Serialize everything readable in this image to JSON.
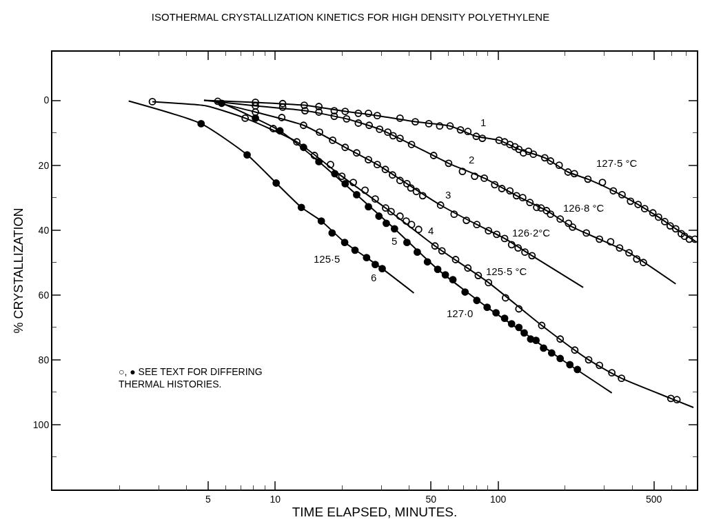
{
  "chart_data": {
    "type": "line",
    "title": "ISOTHERMAL CRYSTALLIZATION KINETICS FOR HIGH DENSITY POLYETHYLENE",
    "xlabel": "TIME ELAPSED, MINUTES.",
    "ylabel": "% CRYSTALLIZATION",
    "log": "x",
    "xlim": [
      1,
      780
    ],
    "ylim": [
      120,
      -15
    ],
    "xticks": [
      {
        "value": 2,
        "label": null
      },
      {
        "value": 3,
        "label": null
      },
      {
        "value": 4,
        "label": null
      },
      5,
      {
        "value": 6,
        "label": null
      },
      {
        "value": 7,
        "label": null
      },
      {
        "value": 8,
        "label": null
      },
      {
        "value": 9,
        "label": null
      },
      10,
      {
        "value": 20,
        "label": null
      },
      {
        "value": 30,
        "label": null
      },
      {
        "value": 40,
        "label": null
      },
      50,
      {
        "value": 60,
        "label": null
      },
      {
        "value": 70,
        "label": null
      },
      {
        "value": 80,
        "label": null
      },
      {
        "value": 90,
        "label": null
      },
      100,
      {
        "value": 200,
        "label": null
      },
      {
        "value": 300,
        "label": null
      },
      {
        "value": 400,
        "label": null
      },
      500,
      {
        "value": 600,
        "label": null
      },
      {
        "value": 700,
        "label": null
      }
    ],
    "yticks": [
      0,
      {
        "value": 10,
        "label": null
      },
      20,
      {
        "value": 30,
        "label": null
      },
      40,
      {
        "value": 50,
        "label": null
      },
      60,
      {
        "value": 70,
        "label": null
      },
      80,
      {
        "value": 90,
        "label": null
      },
      100,
      {
        "value": 110,
        "label": null
      }
    ],
    "series": [
      {
        "marker": "none",
        "color": "#000000",
        "x": [
          4.79,
          8.15,
          13.5,
          20.6,
          28.7,
          42.5,
          60.9,
          79.8,
          101,
          124,
          162,
          206,
          253,
          329,
          425,
          525,
          627,
          770
        ],
        "values": [
          0,
          0.6,
          1.5,
          3.4,
          4.7,
          6.6,
          7.9,
          11.1,
          12.3,
          15.1,
          17.7,
          22.1,
          24.3,
          27.9,
          32.1,
          36.0,
          39.6,
          43.5
        ]
      },
      {
        "type": "scatter",
        "marker": "circle-open",
        "color": "#000000",
        "x": [
          5.52,
          8.15,
          10.8,
          13.5,
          15.7,
          18.4,
          20.6,
          23.6,
          26.2,
          28.7,
          36.3,
          42.5,
          48.9,
          54.7,
          60.9,
          67.8,
          73.2,
          79.8,
          85.0,
          101,
          107,
          113,
          119,
          124,
          130,
          137,
          144,
          162,
          172,
          188,
          206,
          220,
          253,
          294,
          329,
          360,
          393,
          425,
          455,
          495,
          525,
          560,
          592,
          627,
          664,
          687,
          721,
          764
        ],
        "values": [
          0.3,
          0.6,
          1.0,
          1.5,
          1.9,
          3.2,
          3.4,
          4.0,
          4.0,
          4.7,
          5.5,
          6.6,
          7.2,
          7.9,
          7.9,
          9.1,
          9.6,
          11.1,
          11.7,
          12.3,
          12.8,
          13.6,
          14.3,
          15.1,
          16.2,
          15.7,
          16.6,
          17.7,
          18.7,
          20.0,
          22.1,
          22.6,
          24.3,
          25.3,
          27.9,
          29.1,
          31.1,
          32.1,
          33.4,
          34.7,
          36.0,
          37.4,
          38.7,
          39.6,
          41.1,
          41.9,
          42.8,
          42.8
        ]
      },
      {
        "marker": "none",
        "color": "#000000",
        "x": [
          4.79,
          8.15,
          13.6,
          20.9,
          29.4,
          40.9,
          60.0,
          86.7,
          121,
          165,
          216,
          285,
          387,
          627
        ],
        "values": [
          0,
          1.7,
          3.2,
          5.7,
          8.9,
          13.6,
          19.4,
          24.0,
          29.4,
          34.0,
          39.1,
          42.8,
          47.0,
          56.6
        ]
      },
      {
        "type": "scatter",
        "marker": "circle-open",
        "color": "#000000",
        "x": [
          8.15,
          10.8,
          13.6,
          15.7,
          18.4,
          20.9,
          23.6,
          26.4,
          29.4,
          32.0,
          33.8,
          36.3,
          40.9,
          51.4,
          60.0,
          69.2,
          78.5,
          86.7,
          96.6,
          104,
          113,
          121,
          129,
          139,
          149,
          156,
          165,
          172,
          190,
          207,
          216,
          249,
          285,
          320,
          351,
          387,
          419,
          449
        ],
        "values": [
          1.7,
          2.1,
          3.2,
          3.6,
          4.9,
          5.7,
          7.0,
          7.7,
          8.9,
          9.8,
          10.9,
          11.7,
          13.6,
          17.0,
          19.4,
          21.9,
          23.4,
          24.0,
          26.0,
          27.2,
          27.9,
          29.4,
          30.0,
          31.5,
          33.0,
          33.2,
          34.0,
          35.1,
          36.6,
          37.9,
          39.1,
          40.9,
          42.8,
          43.6,
          45.5,
          47.0,
          48.9,
          50.0
        ]
      },
      {
        "marker": "none",
        "color": "#000000",
        "x": [
          5.4,
          8.15,
          13.4,
          20.6,
          28.7,
          39.0,
          55.2,
          80.3,
          107,
          142,
          241
        ],
        "values": [
          0.6,
          3.6,
          7.7,
          14.5,
          19.8,
          25.7,
          32.3,
          38.3,
          42.6,
          47.9,
          57.7
        ]
      },
      {
        "type": "scatter",
        "marker": "circle-open",
        "color": "#000000",
        "x": [
          8.15,
          10.7,
          13.4,
          15.8,
          18.1,
          20.6,
          23.2,
          26.2,
          28.7,
          31.2,
          33.6,
          36.3,
          39.0,
          40.6,
          43.0,
          45.9,
          55.2,
          63.5,
          72.1,
          80.3,
          90.6,
          98.6,
          107,
          115,
          123,
          132,
          142
        ],
        "values": [
          3.6,
          5.3,
          7.7,
          9.8,
          12.3,
          14.5,
          16.2,
          18.3,
          19.8,
          21.3,
          23.0,
          24.7,
          25.7,
          27.0,
          28.1,
          29.4,
          32.3,
          35.1,
          37.0,
          38.3,
          40.2,
          41.3,
          42.6,
          44.5,
          45.5,
          46.8,
          47.9
        ]
      },
      {
        "marker": "none",
        "color": "#000000",
        "x": [
          2.81,
          3.6,
          4.89,
          7.33,
          12.5,
          19.9,
          31.3,
          52.1,
          90.6,
          157,
          255,
          358,
          596,
          753
        ],
        "values": [
          0.4,
          0.9,
          1.7,
          5.5,
          12.8,
          23.4,
          33.2,
          44.9,
          56.2,
          69.4,
          80.0,
          85.7,
          91.9,
          94.7
        ]
      },
      {
        "type": "scatter",
        "marker": "circle-open",
        "color": "#000000",
        "x": [
          2.81,
          7.33,
          9.8,
          12.5,
          15.0,
          17.7,
          19.9,
          22.4,
          25.3,
          28.1,
          31.3,
          33.1,
          36.3,
          38.7,
          40.9,
          44.0,
          52.1,
          56.0,
          64.5,
          73.2,
          81.5,
          90.6,
          108,
          124,
          157,
          190,
          221,
          255,
          285,
          324,
          358,
          596,
          635
        ],
        "values": [
          0.4,
          5.5,
          8.7,
          12.8,
          17.0,
          19.8,
          23.4,
          25.3,
          27.7,
          30.4,
          33.2,
          34.3,
          35.7,
          37.2,
          38.3,
          39.8,
          44.9,
          46.4,
          49.1,
          51.7,
          54.0,
          56.2,
          60.9,
          64.3,
          69.4,
          73.6,
          77.0,
          80.0,
          81.7,
          84.0,
          85.7,
          91.9,
          92.3
        ]
      },
      {
        "marker": "none",
        "color": "#000000",
        "x": [
          5.4,
          5.75,
          10.5,
          15.7,
          23.2,
          34.3,
          53.6,
          89.3,
          131,
          190,
          324
        ],
        "values": [
          0.6,
          0.9,
          9.4,
          18.9,
          29.1,
          39.6,
          52.1,
          63.8,
          71.7,
          79.6,
          90.2
        ]
      },
      {
        "type": "scatter",
        "marker": "circle",
        "color": "#000000",
        "x": [
          5.75,
          8.15,
          10.5,
          13.4,
          15.7,
          18.5,
          20.6,
          23.2,
          26.2,
          29.2,
          31.5,
          34.3,
          39.0,
          43.4,
          48.2,
          53.6,
          58.0,
          62.7,
          71.1,
          80.3,
          89.3,
          97.9,
          107,
          115,
          124,
          131,
          140,
          148,
          160,
          174,
          190,
          210,
          227
        ],
        "values": [
          0.9,
          5.5,
          9.4,
          14.5,
          18.9,
          22.6,
          25.7,
          29.1,
          32.8,
          35.7,
          37.9,
          39.6,
          43.8,
          46.8,
          49.8,
          52.1,
          53.8,
          55.3,
          59.1,
          61.7,
          63.8,
          65.5,
          67.2,
          68.9,
          70.0,
          71.7,
          73.6,
          74.0,
          76.4,
          77.9,
          79.6,
          81.5,
          83.0
        ]
      },
      {
        "marker": "none",
        "color": "#000000",
        "x": [
          2.2,
          4.65,
          7.48,
          10.1,
          13.1,
          16.1,
          20.5,
          25.7,
          30.2,
          41.9
        ],
        "values": [
          0.2,
          7.2,
          16.8,
          25.5,
          33.0,
          37.2,
          43.8,
          48.5,
          51.9,
          59.4
        ]
      },
      {
        "type": "scatter",
        "marker": "circle",
        "color": "#000000",
        "x": [
          4.65,
          7.48,
          10.1,
          13.1,
          16.1,
          18.0,
          20.5,
          22.8,
          25.7,
          28.1,
          30.2
        ],
        "values": [
          7.2,
          16.8,
          25.5,
          33.0,
          37.2,
          40.9,
          43.8,
          46.2,
          48.5,
          50.6,
          51.9
        ]
      }
    ],
    "annotations": [
      "1",
      "2",
      "3",
      "4",
      "5",
      "6",
      "127·5 °C",
      "126·8 °C",
      "126·2°C",
      "125·5 °C",
      "125·5",
      "127·0",
      "○, ● SEE TEXT FOR DIFFERING\nTHERMAL HISTORIES."
    ]
  }
}
